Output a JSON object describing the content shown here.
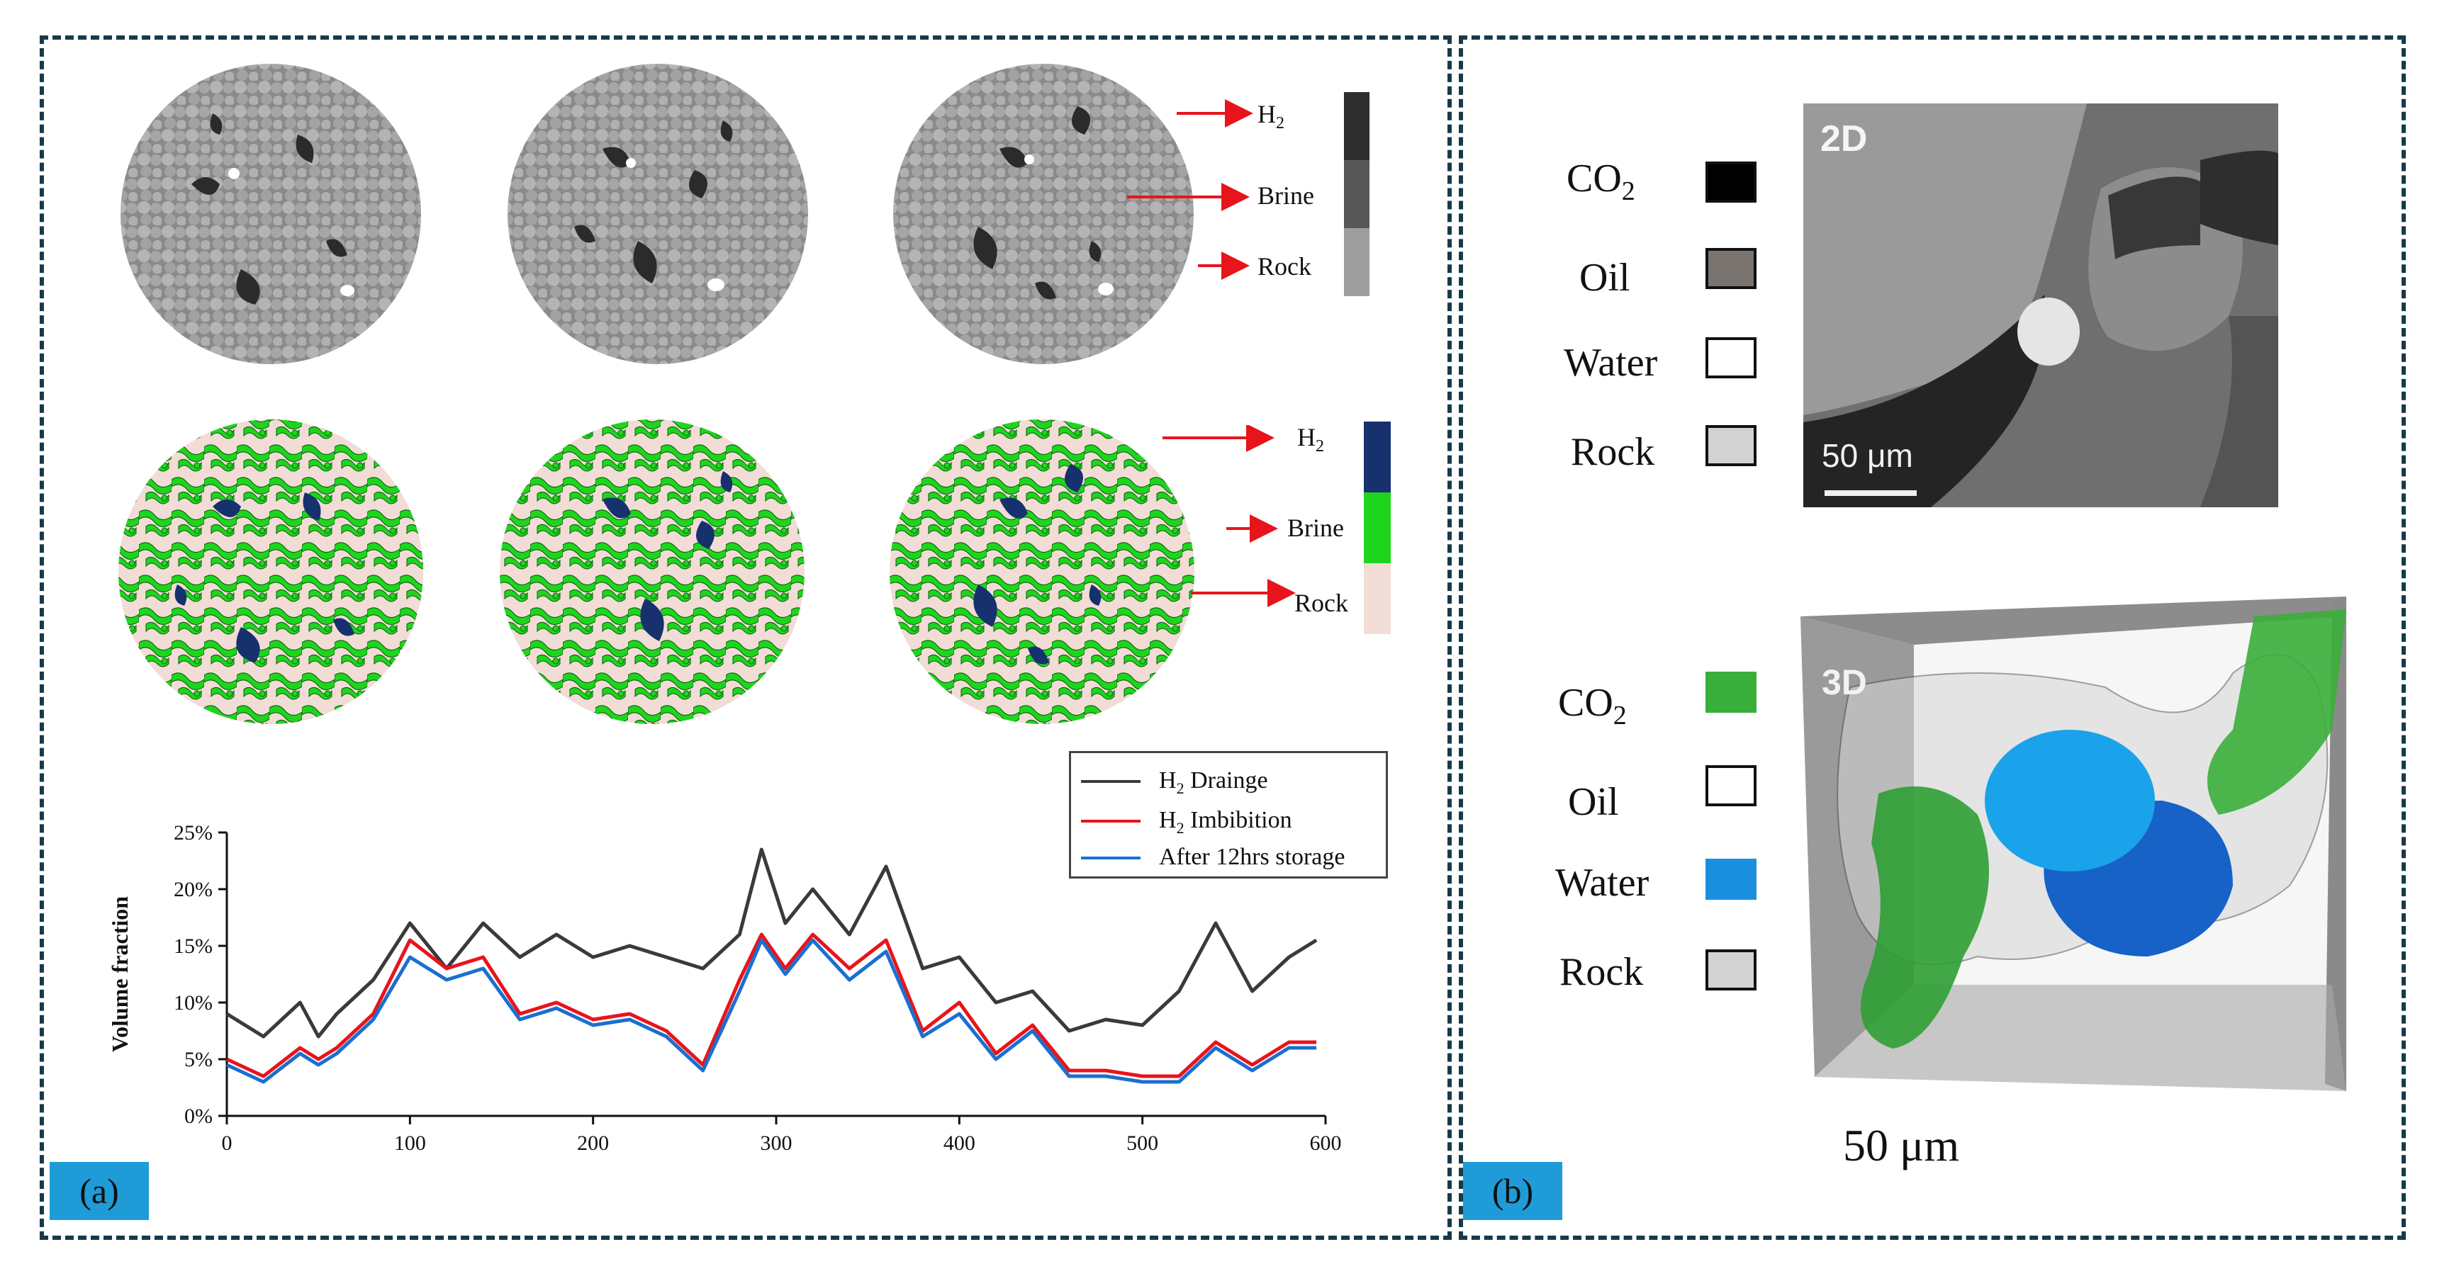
{
  "panel_a": {
    "label": "(a)",
    "segmentation_labels": {
      "gray": [
        "H2",
        "Brine",
        "Rock"
      ],
      "colored": [
        "H2",
        "Brine",
        "Rock"
      ]
    },
    "colors": {
      "gray_h2": "#2e2e2e",
      "gray_brine": "#575757",
      "gray_rock": "#9e9e9e",
      "seg_h2": "#17306e",
      "seg_brine": "#1ed51e",
      "seg_rock": "#f1dcd6",
      "arrow": "#e8141c"
    },
    "chart_data": {
      "type": "line",
      "xlabel": "",
      "ylabel": "Volume fraction",
      "xlim": [
        0,
        600
      ],
      "ylim": [
        0,
        25
      ],
      "x_ticks": [
        "0",
        "100",
        "200",
        "300",
        "400",
        "500",
        "600"
      ],
      "y_ticks": [
        "0%",
        "5%",
        "10%",
        "15%",
        "20%",
        "25%"
      ],
      "legend_position": "top-right",
      "x": [
        0,
        20,
        40,
        50,
        60,
        80,
        100,
        120,
        140,
        160,
        180,
        200,
        220,
        240,
        260,
        280,
        292,
        305,
        320,
        340,
        360,
        380,
        400,
        420,
        440,
        460,
        480,
        500,
        520,
        540,
        560,
        580,
        595
      ],
      "series": [
        {
          "name": "H2 Drainge",
          "color": "#3a3a3a",
          "values": [
            9,
            7,
            10,
            7,
            9,
            12,
            17,
            13,
            17,
            14,
            16,
            14,
            15,
            14,
            13,
            16,
            23.5,
            17,
            20,
            16,
            22,
            13,
            14,
            10,
            11,
            7.5,
            8.5,
            8,
            11,
            17,
            11,
            14,
            15.5
          ]
        },
        {
          "name": "H2 Imbibition",
          "color": "#e8141c",
          "values": [
            5,
            3.5,
            6,
            5,
            6,
            9,
            15.5,
            13,
            14,
            9,
            10,
            8.5,
            9,
            7.5,
            4.5,
            12,
            16,
            13,
            16,
            13,
            15.5,
            7.5,
            10,
            5.5,
            8,
            4,
            4,
            3.5,
            3.5,
            6.5,
            4.5,
            6.5,
            6.5
          ]
        },
        {
          "name": "After 12hrs storage",
          "color": "#1a6fd0",
          "values": [
            4.5,
            3,
            5.5,
            4.5,
            5.5,
            8.5,
            14,
            12,
            13,
            8.5,
            9.5,
            8,
            8.5,
            7,
            4,
            11,
            15.5,
            12.5,
            15.5,
            12,
            14.5,
            7,
            9,
            5,
            7.5,
            3.5,
            3.5,
            3,
            3,
            6,
            4,
            6,
            6
          ]
        }
      ]
    }
  },
  "panel_b": {
    "label": "(b)",
    "label_2d": "2D",
    "label_3d": "3D",
    "scalebar_2d": "50 μm",
    "scalebar_3d": "50 μm",
    "legend_2d": [
      {
        "name": "CO2",
        "color": "#000000"
      },
      {
        "name": "Oil",
        "color": "#7a7470"
      },
      {
        "name": "Water",
        "color": "#ffffff"
      },
      {
        "name": "Rock",
        "color": "#d2d2d2"
      }
    ],
    "legend_3d": [
      {
        "name": "CO2",
        "color": "#3aae3a"
      },
      {
        "name": "Oil",
        "color": "#ffffff"
      },
      {
        "name": "Water",
        "color": "#1a8fe0"
      },
      {
        "name": "Rock",
        "color": "#d2d2d2"
      }
    ]
  }
}
